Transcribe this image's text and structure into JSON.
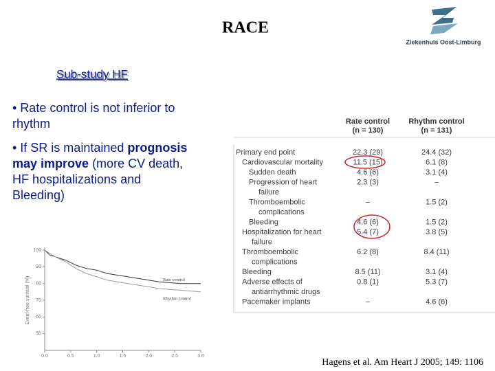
{
  "title": "RACE",
  "logo": "Ziekenhuis Oost-Limburg",
  "subtitle": "Sub-study HF",
  "bullets": [
    [
      [
        {
          "text": "• Rate control is not inferior to"
        }
      ],
      [
        {
          "text": "rhythm"
        }
      ]
    ],
    [
      [
        {
          "text": "• If SR is maintained "
        },
        {
          "text": "prognosis",
          "bold": true
        }
      ],
      [
        {
          "text": "may improve",
          "bold": true
        },
        {
          "text": " (more CV death,"
        }
      ],
      [
        {
          "text": "HF hospitalizations and"
        }
      ],
      [
        {
          "text": "Bleeding)"
        }
      ]
    ]
  ],
  "table": {
    "header": [
      [
        "Rate control",
        "(n = 130)"
      ],
      [
        "Rhythm control",
        "(n = 131)"
      ]
    ],
    "rows": [
      [
        [
          "Primary end point"
        ],
        "22.3 (29)",
        "24.4 (32)"
      ],
      [
        [
          "Cardiovascular mortality"
        ],
        "11.5 (15)",
        "6.1 (8)"
      ],
      [
        [
          "Sudden death"
        ],
        "4.6 (6)",
        "3.1 (4)"
      ],
      [
        [
          "Progression of heart",
          "failure"
        ],
        "2.3 (3)",
        "–"
      ],
      [
        [
          "Thromboembolic",
          "complications"
        ],
        "–",
        "1.5 (2)"
      ],
      [
        [
          "Bleeding"
        ],
        "4.6 (6)",
        "1.5 (2)"
      ],
      [
        [
          "Hospitalization for heart",
          "failure"
        ],
        "5.4 (7)",
        "3.8 (5)"
      ],
      [
        [
          "Thromboembolic",
          "complications"
        ],
        "6.2 (8)",
        "8.4 (11)"
      ],
      [
        [
          "Bleeding"
        ],
        "8.5 (11)",
        "3.1 (4)"
      ],
      [
        [
          "Adverse effects of",
          "antiarrhythmic drugs"
        ],
        "0.8 (1)",
        "5.3 (7)"
      ],
      [
        [
          "Pacemaker implants"
        ],
        "–",
        "4.6 (6)"
      ]
    ]
  },
  "figure": {
    "type": "line",
    "ylabel": "Event-free survival (%)",
    "x": [
      0,
      0.1,
      0.2,
      0.4,
      0.6,
      0.8,
      1.0,
      1.2,
      1.4,
      1.6,
      1.8,
      2.0,
      2.2,
      2.4,
      2.6,
      2.8,
      3.0
    ],
    "series": [
      {
        "name": "Rate control",
        "color": "#333333",
        "values": [
          100,
          97,
          96,
          94,
          91,
          89,
          88,
          86,
          85,
          84,
          83,
          82,
          81,
          80.5,
          80,
          80,
          80
        ]
      },
      {
        "name": "Rhythm control",
        "color": "#9a9a9a",
        "values": [
          100,
          98,
          96,
          93,
          89,
          86,
          84,
          82,
          81,
          80,
          79,
          78,
          77,
          76.5,
          76,
          75.5,
          75
        ]
      }
    ],
    "xlim": [
      0,
      3
    ],
    "ylim": [
      40,
      100
    ],
    "xticks": [
      {
        "value": 0,
        "label": "0.0"
      },
      0.5,
      {
        "value": 1,
        "label": "1.0"
      },
      1.5,
      {
        "value": 2,
        "label": "2.0"
      },
      2.5,
      {
        "value": 3,
        "label": "3.0"
      }
    ],
    "yticks": [
      50,
      60,
      70,
      80,
      90,
      100
    ]
  },
  "citation": "Hagens et al. Am Heart J 2005; 149: 1106"
}
